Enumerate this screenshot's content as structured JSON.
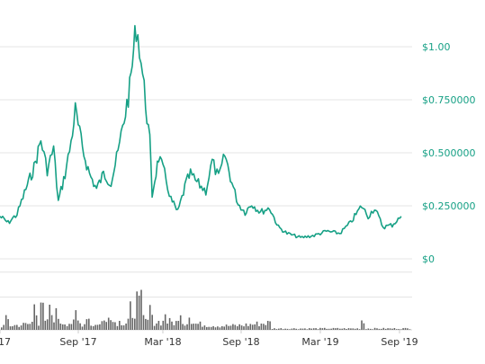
{
  "chart_data": {
    "type": "line",
    "currency_symbol": "$",
    "price_axis": {
      "ticks": [
        {
          "value": 0,
          "label": "$0"
        },
        {
          "value": 0.25,
          "label": "$0.250000"
        },
        {
          "value": 0.5,
          "label": "$0.500000"
        },
        {
          "value": 0.75,
          "label": "$0.750000"
        },
        {
          "value": 1.0,
          "label": "$1.00"
        }
      ],
      "ylim": [
        0,
        1.0
      ],
      "position": "right",
      "grid": true
    },
    "date_axis": {
      "ticks": [
        {
          "date": "2017-03",
          "label": "17"
        },
        {
          "date": "2017-09",
          "label": "Sep '17"
        },
        {
          "date": "2018-03",
          "label": "Mar '18"
        },
        {
          "date": "2018-09",
          "label": "Sep '18"
        },
        {
          "date": "2019-03",
          "label": "Mar '19"
        },
        {
          "date": "2019-09",
          "label": "Sep '19"
        }
      ]
    },
    "series": [
      {
        "kind": "price-line",
        "color": "#16a085",
        "points": [
          [
            "2017-03-01",
            0.2
          ],
          [
            "2017-03-20",
            0.17
          ],
          [
            "2017-04-10",
            0.21
          ],
          [
            "2017-05-01",
            0.33
          ],
          [
            "2017-05-20",
            0.43
          ],
          [
            "2017-06-05",
            0.56
          ],
          [
            "2017-06-20",
            0.42
          ],
          [
            "2017-07-05",
            0.52
          ],
          [
            "2017-07-16",
            0.27
          ],
          [
            "2017-08-01",
            0.4
          ],
          [
            "2017-08-15",
            0.55
          ],
          [
            "2017-08-25",
            0.7
          ],
          [
            "2017-09-10",
            0.52
          ],
          [
            "2017-09-25",
            0.4
          ],
          [
            "2017-10-10",
            0.33
          ],
          [
            "2017-10-25",
            0.4
          ],
          [
            "2017-11-10",
            0.36
          ],
          [
            "2017-11-25",
            0.5
          ],
          [
            "2017-12-05",
            0.62
          ],
          [
            "2017-12-20",
            0.8
          ],
          [
            "2018-01-03",
            1.1
          ],
          [
            "2018-01-10",
            1.0
          ],
          [
            "2018-01-20",
            0.8
          ],
          [
            "2018-02-01",
            0.55
          ],
          [
            "2018-02-06",
            0.3
          ],
          [
            "2018-02-20",
            0.48
          ],
          [
            "2018-03-05",
            0.4
          ],
          [
            "2018-03-20",
            0.28
          ],
          [
            "2018-04-05",
            0.22
          ],
          [
            "2018-04-25",
            0.36
          ],
          [
            "2018-05-05",
            0.4
          ],
          [
            "2018-05-20",
            0.36
          ],
          [
            "2018-06-10",
            0.32
          ],
          [
            "2018-06-25",
            0.46
          ],
          [
            "2018-07-10",
            0.38
          ],
          [
            "2018-07-25",
            0.49
          ],
          [
            "2018-08-10",
            0.36
          ],
          [
            "2018-08-25",
            0.26
          ],
          [
            "2018-09-10",
            0.22
          ],
          [
            "2018-09-25",
            0.26
          ],
          [
            "2018-10-15",
            0.22
          ],
          [
            "2018-11-05",
            0.24
          ],
          [
            "2018-11-25",
            0.15
          ],
          [
            "2018-12-15",
            0.12
          ],
          [
            "2019-01-15",
            0.1
          ],
          [
            "2019-02-15",
            0.11
          ],
          [
            "2019-03-15",
            0.13
          ],
          [
            "2019-04-15",
            0.12
          ],
          [
            "2019-05-10",
            0.17
          ],
          [
            "2019-06-05",
            0.25
          ],
          [
            "2019-06-20",
            0.2
          ],
          [
            "2019-07-05",
            0.24
          ],
          [
            "2019-07-25",
            0.15
          ],
          [
            "2019-08-15",
            0.16
          ],
          [
            "2019-09-05",
            0.2
          ]
        ]
      },
      {
        "kind": "volume-bars",
        "color": "#666666",
        "baseline_bars": 188,
        "spikes": [
          [
            "2017-03-15",
            0.35
          ],
          [
            "2017-05-20",
            0.55
          ],
          [
            "2017-06-06",
            0.75
          ],
          [
            "2017-06-25",
            0.55
          ],
          [
            "2017-07-10",
            0.45
          ],
          [
            "2017-08-25",
            0.4
          ],
          [
            "2017-09-20",
            0.3
          ],
          [
            "2017-11-05",
            0.3
          ],
          [
            "2017-12-20",
            0.55
          ],
          [
            "2018-01-05",
            1.0
          ],
          [
            "2018-01-12",
            0.8
          ],
          [
            "2018-02-01",
            0.55
          ],
          [
            "2018-03-05",
            0.3
          ],
          [
            "2018-04-10",
            0.28
          ],
          [
            "2018-05-01",
            0.25
          ],
          [
            "2019-06-05",
            0.22
          ]
        ]
      }
    ],
    "legend": "none"
  }
}
